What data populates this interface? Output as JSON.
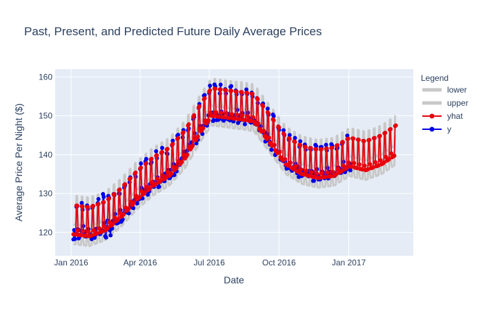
{
  "chart_data": {
    "type": "line",
    "title": "Past, Present, and Predicted Future Daily Average Prices",
    "xlabel": "Date",
    "ylabel": "Average Price Per Night ($)",
    "xlim": [
      "2015-12-11",
      "2017-03-27"
    ],
    "ylim": [
      114,
      162
    ],
    "x_ticks": [
      {
        "date": "2016-01-01",
        "label": "Jan 2016"
      },
      {
        "date": "2016-04-01",
        "label": "Apr 2016"
      },
      {
        "date": "2016-07-01",
        "label": "Jul 2016"
      },
      {
        "date": "2016-10-01",
        "label": "Oct 2016"
      },
      {
        "date": "2017-01-01",
        "label": "Jan 2017"
      }
    ],
    "y_ticks": [
      120,
      130,
      140,
      150,
      160
    ],
    "grid": true,
    "legend": {
      "title": "Legend",
      "placement": "right",
      "entries": [
        {
          "name": "lower",
          "color": "#c8c8c8",
          "style": "band"
        },
        {
          "name": "upper",
          "color": "#c8c8c8",
          "style": "band"
        },
        {
          "name": "yhat",
          "color": "#e8000b",
          "style": "line+markers"
        },
        {
          "name": "y",
          "color": "#0000e6",
          "style": "line+markers"
        }
      ]
    },
    "series_summary": {
      "daily_start": "2016-01-04",
      "history_end": "2017-01-03",
      "forecast_end": "2017-03-04",
      "trend_knots": [
        {
          "date": "2016-01-04",
          "value": 119.5
        },
        {
          "date": "2016-01-25",
          "value": 119.0
        },
        {
          "date": "2016-02-15",
          "value": 120.5
        },
        {
          "date": "2016-03-07",
          "value": 124.0
        },
        {
          "date": "2016-03-28",
          "value": 128.5
        },
        {
          "date": "2016-04-18",
          "value": 132.0
        },
        {
          "date": "2016-05-09",
          "value": 134.5
        },
        {
          "date": "2016-05-30",
          "value": 139.0
        },
        {
          "date": "2016-06-20",
          "value": 146.0
        },
        {
          "date": "2016-07-04",
          "value": 150.0
        },
        {
          "date": "2016-07-25",
          "value": 149.5
        },
        {
          "date": "2016-08-15",
          "value": 149.0
        },
        {
          "date": "2016-08-29",
          "value": 148.5
        },
        {
          "date": "2016-09-19",
          "value": 143.0
        },
        {
          "date": "2016-10-10",
          "value": 137.5
        },
        {
          "date": "2016-10-31",
          "value": 135.0
        },
        {
          "date": "2016-11-21",
          "value": 134.0
        },
        {
          "date": "2016-12-12",
          "value": 134.5
        },
        {
          "date": "2017-01-02",
          "value": 137.0
        },
        {
          "date": "2017-01-23",
          "value": 136.0
        },
        {
          "date": "2017-02-13",
          "value": 137.5
        },
        {
          "date": "2017-03-04",
          "value": 140.0
        }
      ],
      "weekend_uplift": {
        "start": 7.5,
        "mid": 7.0,
        "end": 7.5
      },
      "interval_halfwidth": 2.5
    },
    "colors": {
      "band": "#c8c8c8",
      "yhat": "#e8000b",
      "y": "#0000e6",
      "plot_bg": "#e5ecf6",
      "grid": "#ffffff"
    }
  }
}
